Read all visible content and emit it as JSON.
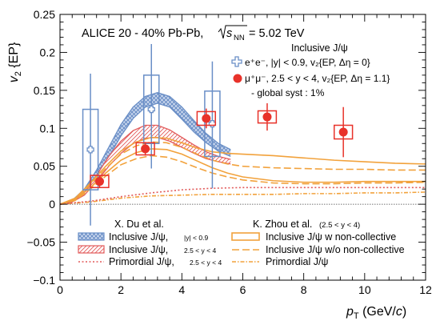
{
  "chart_data": {
    "type": "scatter",
    "header": {
      "collision": "ALICE 20 - 40% Pb-Pb,",
      "sqrt_prefix": "s",
      "sqrt_sub": "NN",
      "energy": "= 5.02 TeV"
    },
    "ylabel": {
      "main": "v",
      "sub": "2",
      "rest": " {EP}"
    },
    "xlabel": {
      "main": "p",
      "sub": "T",
      "rest": " (GeV/",
      "italic_c": "c",
      "close": ")"
    },
    "xlim": [
      0,
      12
    ],
    "ylim": [
      -0.1,
      0.25
    ],
    "x_ticks": [
      "0",
      "2",
      "4",
      "6",
      "8",
      "10",
      "12"
    ],
    "y_ticks": [
      "−0.1",
      "−0.05",
      "0",
      "0.05",
      "0.1",
      "0.15",
      "0.2",
      "0.25"
    ],
    "legend_data": {
      "title": "Inclusive J/ψ",
      "ee": "e⁺e⁻, |y| < 0.9, v₂{EP, Δη = 0}",
      "mumu": "μ⁺μ⁻, 2.5 < y < 4, v₂{EP, Δη = 1.1}",
      "syst": "- global syst : 1%"
    },
    "legend_models_left": {
      "title": "X. Du et al.",
      "items": [
        {
          "label": "Inclusive J/ψ,",
          "small": "|y| < 0.9"
        },
        {
          "label": "Inclusive J/ψ,",
          "small": "2.5 < y < 4"
        },
        {
          "label": "Primordial J/ψ,",
          "small": "2.5 < y < 4"
        }
      ]
    },
    "legend_models_right": {
      "title": "K. Zhou et al.",
      "title_small": "(2.5 < y < 4)",
      "items": [
        {
          "label": "Inclusive J/ψ w non-collective"
        },
        {
          "label": "Inclusive J/ψ w/o non-collective"
        },
        {
          "label": "Primordial J/ψ"
        }
      ]
    },
    "series": [
      {
        "name": "e⁺e⁻, |y| < 0.9",
        "marker": "open-cross",
        "color": "#6a8fc7",
        "points": [
          {
            "x": 1.0,
            "y": 0.072,
            "xerr": 0.25,
            "err_low": 0.1,
            "err_high": 0.1,
            "syst": 0.053
          },
          {
            "x": 3.0,
            "y": 0.125,
            "xerr": 0.25,
            "err_low": 0.078,
            "err_high": 0.086,
            "syst": 0.045
          },
          {
            "x": 5.0,
            "y": 0.106,
            "xerr": 0.25,
            "err_low": 0.085,
            "err_high": 0.082,
            "syst": 0.043
          }
        ]
      },
      {
        "name": "μ⁺μ⁻, 2.5 < y < 4",
        "marker": "filled-circle",
        "color": "#e8322a",
        "points": [
          {
            "x": 1.3,
            "y": 0.03,
            "xerr": 0.3,
            "err_low": 0.008,
            "err_high": 0.008,
            "syst": 0.008
          },
          {
            "x": 2.8,
            "y": 0.073,
            "xerr": 0.3,
            "err_low": 0.009,
            "err_high": 0.009,
            "syst": 0.008
          },
          {
            "x": 4.8,
            "y": 0.113,
            "xerr": 0.3,
            "err_low": 0.013,
            "err_high": 0.013,
            "syst": 0.009
          },
          {
            "x": 6.8,
            "y": 0.115,
            "xerr": 0.3,
            "err_low": 0.018,
            "err_high": 0.018,
            "syst": 0.008
          },
          {
            "x": 9.3,
            "y": 0.095,
            "xerr": 0.3,
            "err_low": 0.033,
            "err_high": 0.033,
            "syst": 0.009
          }
        ]
      }
    ],
    "bands": [
      {
        "name": "X. Du et al. Inclusive J/ψ, |y| < 0.9",
        "color": "#6a8fc7",
        "fill": "#b3c7e6",
        "hatch": "cross",
        "x": [
          0.0,
          0.4,
          0.8,
          1.2,
          1.6,
          2.0,
          2.4,
          2.8,
          3.2,
          3.6,
          4.0,
          4.4,
          4.8,
          5.2,
          5.6
        ],
        "low": [
          0.0,
          0.003,
          0.015,
          0.035,
          0.062,
          0.09,
          0.113,
          0.128,
          0.133,
          0.128,
          0.112,
          0.095,
          0.081,
          0.07,
          0.063
        ],
        "high": [
          0.0,
          0.005,
          0.02,
          0.045,
          0.075,
          0.105,
          0.128,
          0.142,
          0.147,
          0.142,
          0.128,
          0.11,
          0.093,
          0.08,
          0.072
        ]
      },
      {
        "name": "X. Du et al. Inclusive J/ψ, 2.5 < y < 4",
        "color": "#e25a5a",
        "fill": "#f4b5b5",
        "hatch": "diag",
        "x": [
          0.0,
          0.4,
          0.8,
          1.2,
          1.6,
          2.0,
          2.4,
          2.8,
          3.2,
          3.6,
          4.0,
          4.4,
          4.8,
          5.2,
          5.6
        ],
        "low": [
          0.0,
          0.003,
          0.012,
          0.03,
          0.05,
          0.067,
          0.08,
          0.087,
          0.088,
          0.083,
          0.075,
          0.067,
          0.06,
          0.056,
          0.053
        ],
        "high": [
          0.0,
          0.004,
          0.016,
          0.038,
          0.063,
          0.083,
          0.097,
          0.104,
          0.104,
          0.098,
          0.088,
          0.078,
          0.069,
          0.063,
          0.059
        ]
      }
    ],
    "lines": [
      {
        "name": "K. Zhou et al. Inclusive J/ψ w non-collective (upper)",
        "color": "#f2a23c",
        "dash": "solid",
        "x": [
          0.0,
          0.5,
          1.0,
          1.5,
          2.0,
          2.5,
          3.0,
          3.5,
          4.0,
          4.5,
          5.0,
          5.5,
          6.0,
          7.0,
          8.0,
          9.0,
          10.0,
          11.0,
          12.0
        ],
        "y": [
          0.0,
          0.008,
          0.028,
          0.05,
          0.07,
          0.082,
          0.088,
          0.087,
          0.081,
          0.074,
          0.069,
          0.067,
          0.066,
          0.064,
          0.061,
          0.058,
          0.056,
          0.054,
          0.053
        ]
      },
      {
        "name": "K. Zhou et al. Inclusive J/ψ w non-collective (lower)",
        "color": "#f2a23c",
        "dash": "solid",
        "x": [
          0.0,
          0.5,
          1.0,
          1.5,
          2.0,
          2.5,
          3.0,
          3.5,
          4.0,
          4.5,
          5.0,
          5.5,
          6.0,
          7.0,
          8.0,
          9.0,
          10.0,
          11.0,
          12.0
        ],
        "y": [
          0.0,
          0.006,
          0.022,
          0.041,
          0.058,
          0.068,
          0.073,
          0.072,
          0.066,
          0.057,
          0.048,
          0.041,
          0.036,
          0.031,
          0.029,
          0.029,
          0.03,
          0.03,
          0.03
        ]
      },
      {
        "name": "K. Zhou et al. Inclusive J/ψ w/o non-collective (upper)",
        "color": "#f2a23c",
        "dash": "dashed",
        "x": [
          0.0,
          0.5,
          1.0,
          1.5,
          2.0,
          2.5,
          3.0,
          3.5,
          4.0,
          4.5,
          5.0,
          5.5,
          6.0,
          7.0,
          8.0,
          9.0,
          10.0,
          11.0,
          12.0
        ],
        "y": [
          0.0,
          0.007,
          0.026,
          0.047,
          0.066,
          0.077,
          0.082,
          0.081,
          0.075,
          0.066,
          0.058,
          0.053,
          0.05,
          0.048,
          0.047,
          0.046,
          0.046,
          0.045,
          0.045
        ]
      },
      {
        "name": "K. Zhou et al. Inclusive J/ψ w/o non-collective (lower)",
        "color": "#f2a23c",
        "dash": "dashed",
        "x": [
          0.0,
          0.5,
          1.0,
          1.5,
          2.0,
          2.5,
          3.0,
          3.5,
          4.0,
          4.5,
          5.0,
          5.5,
          6.0,
          7.0,
          8.0,
          9.0,
          10.0,
          11.0,
          12.0
        ],
        "y": [
          0.0,
          0.005,
          0.02,
          0.037,
          0.052,
          0.06,
          0.064,
          0.062,
          0.056,
          0.048,
          0.041,
          0.036,
          0.032,
          0.028,
          0.027,
          0.027,
          0.028,
          0.028,
          0.029
        ]
      },
      {
        "name": "K. Zhou et al. Primordial J/ψ",
        "color": "#f2a23c",
        "dash": "dashdot",
        "x": [
          0.0,
          1.0,
          2.0,
          3.0,
          4.0,
          5.0,
          6.0,
          7.0,
          8.0,
          9.0,
          10.0,
          11.0,
          12.0
        ],
        "y": [
          0.0,
          0.003,
          0.008,
          0.011,
          0.012,
          0.013,
          0.013,
          0.013,
          0.014,
          0.014,
          0.015,
          0.015,
          0.016
        ]
      },
      {
        "name": "X. Du et al. Primordial J/ψ, 2.5 < y < 4",
        "color": "#e25a5a",
        "dash": "dotted",
        "x": [
          0.0,
          1.0,
          2.0,
          3.0,
          4.0,
          5.0,
          6.0,
          7.0,
          8.0,
          9.0,
          10.0,
          11.0,
          12.0
        ],
        "y": [
          0.0,
          0.004,
          0.01,
          0.015,
          0.019,
          0.021,
          0.022,
          0.022,
          0.022,
          0.022,
          0.022,
          0.022,
          0.022
        ]
      }
    ]
  }
}
